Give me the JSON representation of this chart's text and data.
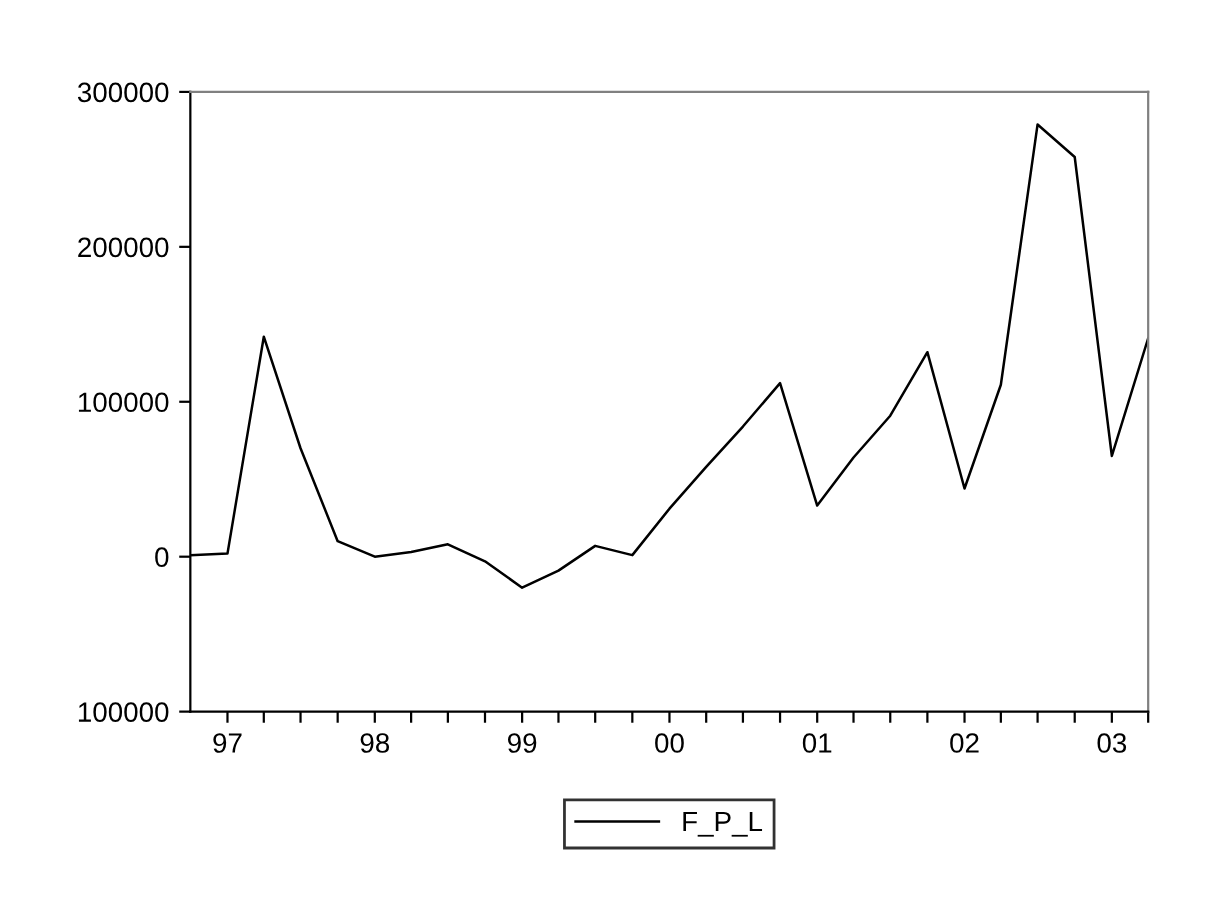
{
  "chart_data": {
    "type": "line",
    "x": [
      "1996-10",
      "1997-01",
      "1997-04",
      "1997-07",
      "1997-10",
      "1998-01",
      "1998-04",
      "1998-07",
      "1998-10",
      "1999-01",
      "1999-04",
      "1999-07",
      "1999-10",
      "2000-01",
      "2000-04",
      "2000-07",
      "2000-10",
      "2001-01",
      "2001-04",
      "2001-07",
      "2001-10",
      "2002-01",
      "2002-04",
      "2002-07",
      "2002-10",
      "2003-01",
      "2003-04"
    ],
    "series": [
      {
        "name": "F_P_L",
        "color": "#000000",
        "values": [
          1000,
          2000,
          142000,
          70000,
          10000,
          0,
          3000,
          8000,
          -3000,
          -20000,
          -9000,
          7000,
          1000,
          31000,
          58000,
          84000,
          112000,
          33000,
          64000,
          91000,
          132000,
          44000,
          111000,
          279000,
          258000,
          65000,
          141000
        ]
      }
    ],
    "xlim": [
      "1996-10",
      "2003-04"
    ],
    "xticks": [
      {
        "value": "1997-01",
        "label": "97"
      },
      {
        "value": "1997-04",
        "label": null
      },
      {
        "value": "1997-07",
        "label": null
      },
      {
        "value": "1997-10",
        "label": null
      },
      {
        "value": "1998-01",
        "label": "98"
      },
      {
        "value": "1998-04",
        "label": null
      },
      {
        "value": "1998-07",
        "label": null
      },
      {
        "value": "1998-10",
        "label": null
      },
      {
        "value": "1999-01",
        "label": "99"
      },
      {
        "value": "1999-04",
        "label": null
      },
      {
        "value": "1999-07",
        "label": null
      },
      {
        "value": "1999-10",
        "label": null
      },
      {
        "value": "2000-01",
        "label": "00"
      },
      {
        "value": "2000-04",
        "label": null
      },
      {
        "value": "2000-07",
        "label": null
      },
      {
        "value": "2000-10",
        "label": null
      },
      {
        "value": "2001-01",
        "label": "01"
      },
      {
        "value": "2001-04",
        "label": null
      },
      {
        "value": "2001-07",
        "label": null
      },
      {
        "value": "2001-10",
        "label": null
      },
      {
        "value": "2002-01",
        "label": "02"
      },
      {
        "value": "2002-04",
        "label": null
      },
      {
        "value": "2002-07",
        "label": null
      },
      {
        "value": "2002-10",
        "label": null
      },
      {
        "value": "2003-01",
        "label": "03"
      },
      {
        "value": "2003-04",
        "label": null
      }
    ],
    "ylim": [
      -100000,
      300000
    ],
    "yticks": [
      {
        "value": -100000,
        "label": "100000"
      },
      0,
      100000,
      200000,
      300000
    ],
    "legend": "bottom",
    "grid": false,
    "marker": "none",
    "line_style": "solid"
  }
}
